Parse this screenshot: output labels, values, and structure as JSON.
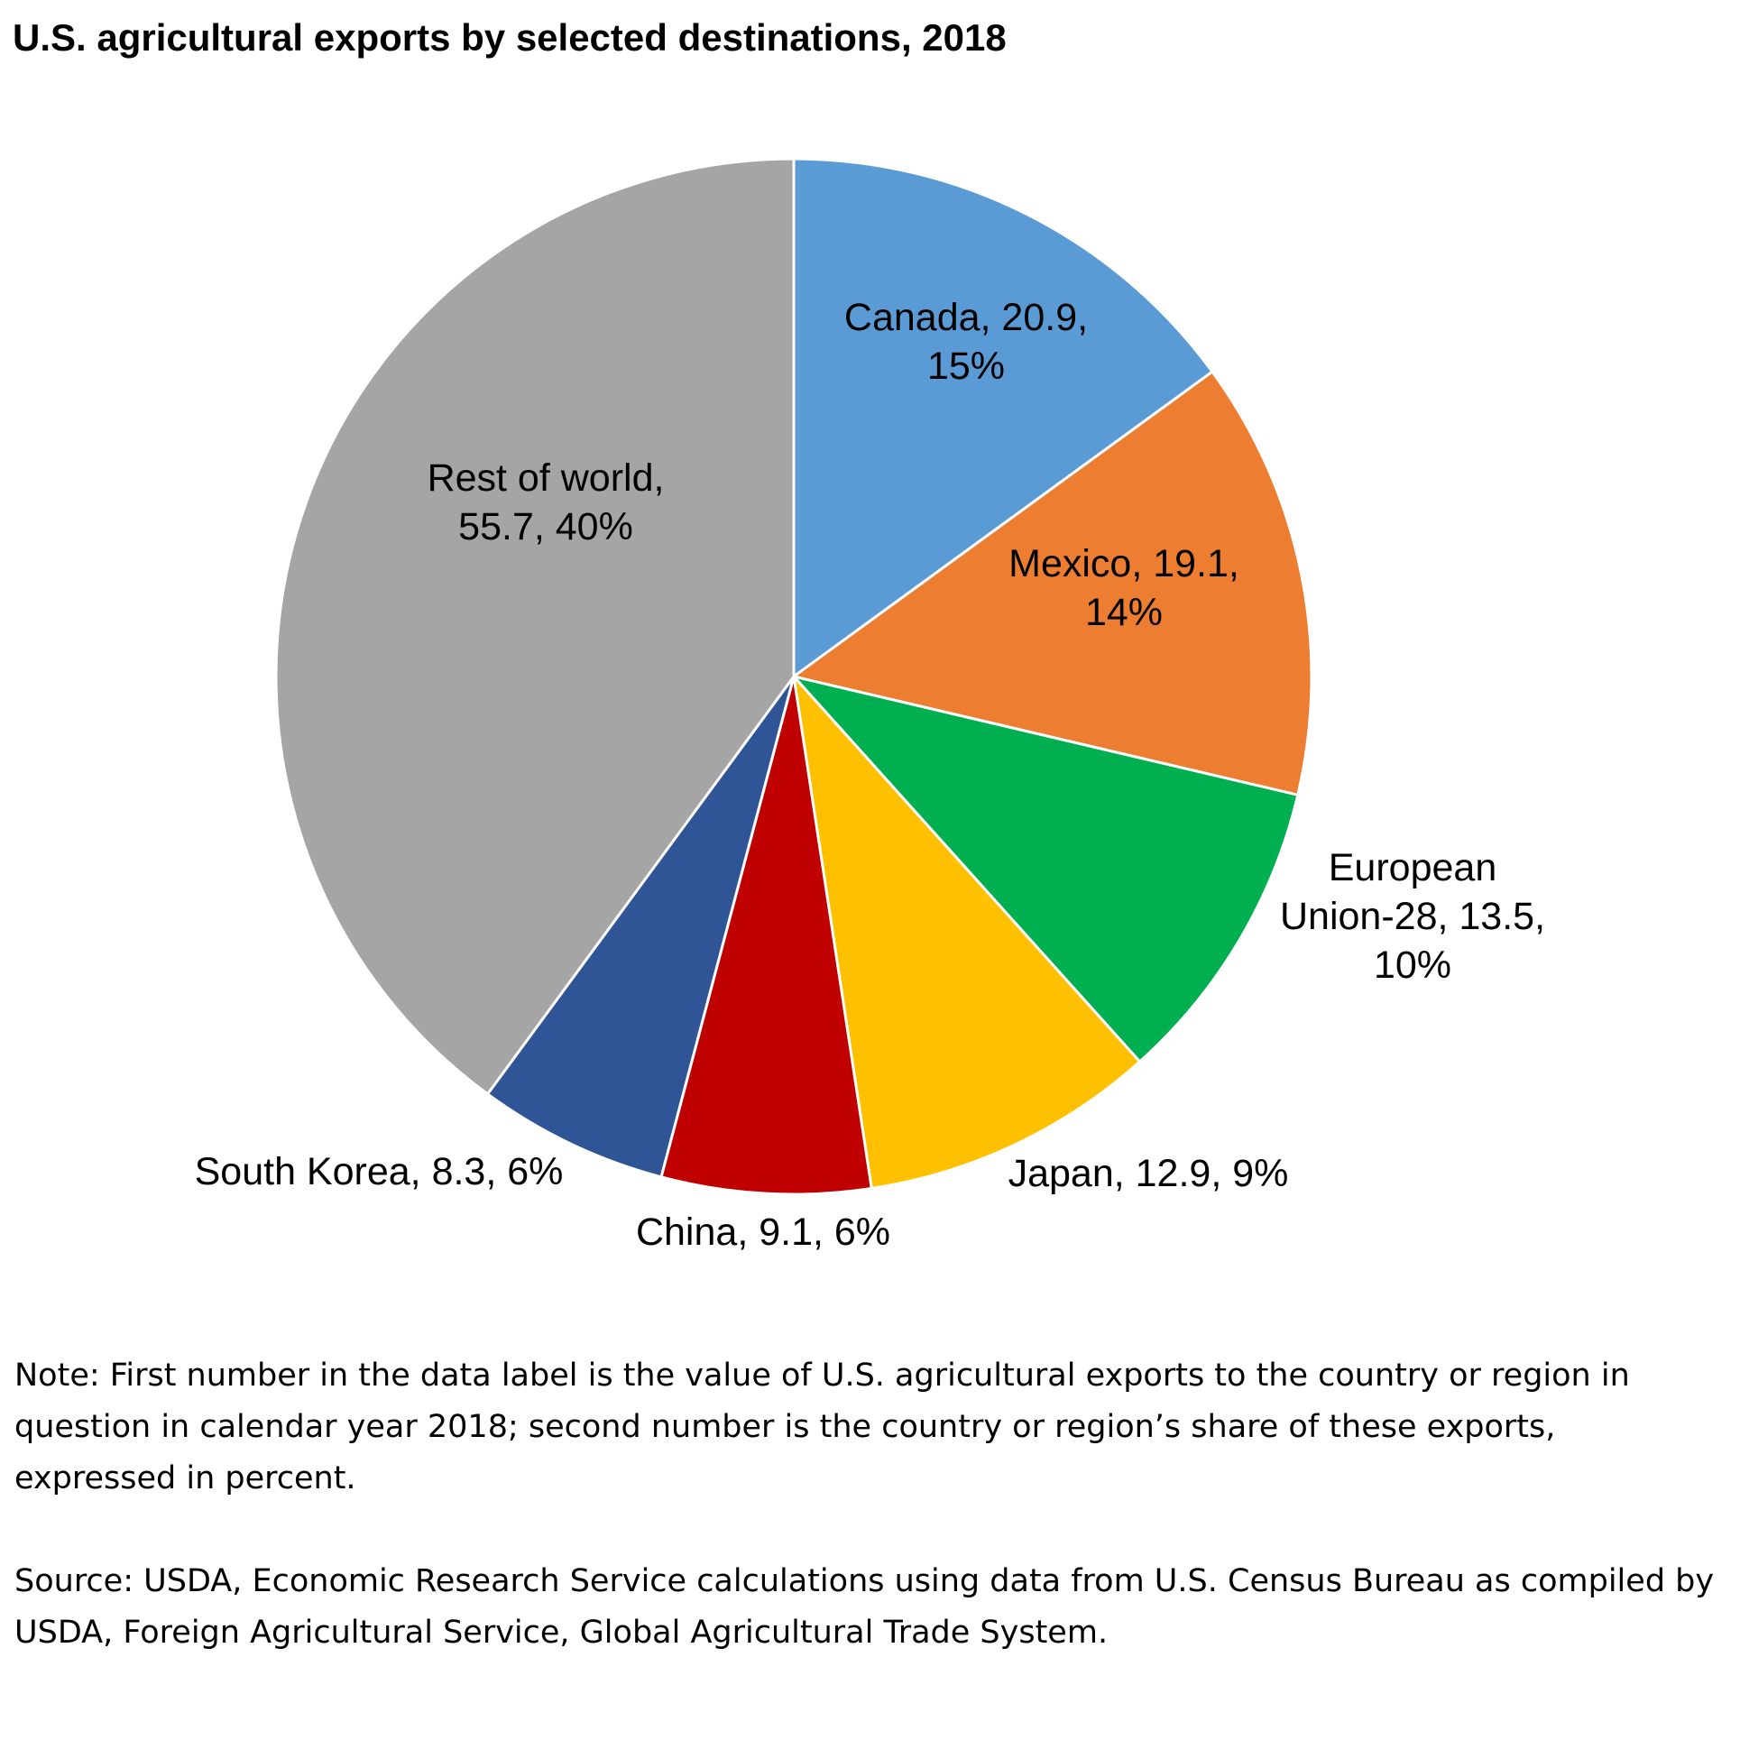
{
  "chart_data": {
    "type": "pie",
    "title": "U.S. agricultural exports by selected destinations, 2018",
    "slices": [
      {
        "name": "Canada",
        "value": 20.9,
        "percent": 15,
        "color": "#5B9BD5",
        "label_lines": [
          "Canada, 20.9,",
          "15%"
        ]
      },
      {
        "name": "Mexico",
        "value": 19.1,
        "percent": 14,
        "color": "#ED7D31",
        "label_lines": [
          "Mexico, 19.1,",
          "14%"
        ]
      },
      {
        "name": "European Union-28",
        "value": 13.5,
        "percent": 10,
        "color": "#00B050",
        "label_lines": [
          "European",
          "Union-28, 13.5,",
          "10%"
        ]
      },
      {
        "name": "Japan",
        "value": 12.9,
        "percent": 9,
        "color": "#FFC000",
        "label_lines": [
          "Japan, 12.9, 9%"
        ]
      },
      {
        "name": "China",
        "value": 9.1,
        "percent": 6,
        "color": "#C00000",
        "label_lines": [
          "China, 9.1, 6%"
        ]
      },
      {
        "name": "South Korea",
        "value": 8.3,
        "percent": 6,
        "color": "#2F5597",
        "label_lines": [
          "South Korea, 8.3, 6%"
        ]
      },
      {
        "name": "Rest of world",
        "value": 55.7,
        "percent": 40,
        "color": "#A5A5A5",
        "label_lines": [
          "Rest of world,",
          "55.7, 40%"
        ]
      }
    ]
  },
  "note": "Note: First number in the data label is the value of U.S. agricultural exports to the country or region in question in calendar year 2018; second number is the country or region’s share of these exports, expressed in percent.",
  "source": "Source: USDA, Economic Research Service calculations using data from U.S. Census Bureau as compiled by USDA, Foreign Agricultural Service, Global Agricultural Trade System."
}
